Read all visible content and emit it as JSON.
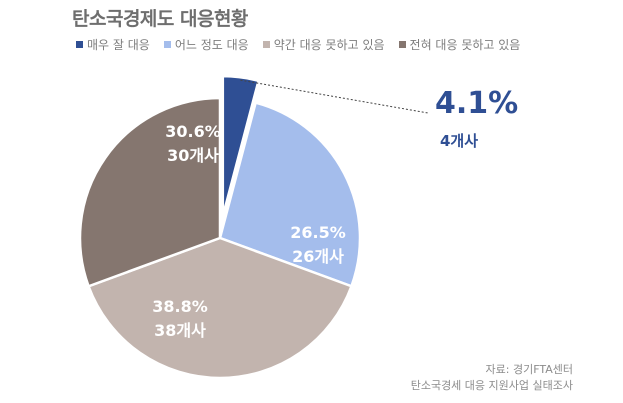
{
  "title": "탄소국경제도 대응현황",
  "legend": [
    {
      "label": "매우 잘 대응",
      "color": "#2f4f94"
    },
    {
      "label": "어느 정도 대응",
      "color": "#a4bdec"
    },
    {
      "label": "약간 대응 못하고 있음",
      "color": "#c2b4ae"
    },
    {
      "label": "전혀 대응 못하고 있음",
      "color": "#85766f"
    }
  ],
  "callout": {
    "pct": "4.1%",
    "count": "4개사"
  },
  "source": {
    "line1": "자료: 경기FTA센터",
    "line2": "탄소국경세 대응 지원사업 실태조사"
  },
  "chart_data": {
    "type": "pie",
    "title": "탄소국경제도 대응현황",
    "slices": [
      {
        "name": "매우 잘 대응",
        "value": 4.1,
        "count": 4,
        "pct_label": "4.1%",
        "count_label": "4개사",
        "color": "#2f4f94",
        "exploded": true
      },
      {
        "name": "어느 정도 대응",
        "value": 26.5,
        "count": 26,
        "pct_label": "26.5%",
        "count_label": "26개사",
        "color": "#a4bdec"
      },
      {
        "name": "약간 대응 못하고 있음",
        "value": 38.8,
        "count": 38,
        "pct_label": "38.8%",
        "count_label": "38개사",
        "color": "#c2b4ae"
      },
      {
        "name": "전혀 대응 못하고 있음",
        "value": 30.6,
        "count": 30,
        "pct_label": "30.6%",
        "count_label": "30개사",
        "color": "#85766f"
      }
    ],
    "legend_position": "top"
  }
}
